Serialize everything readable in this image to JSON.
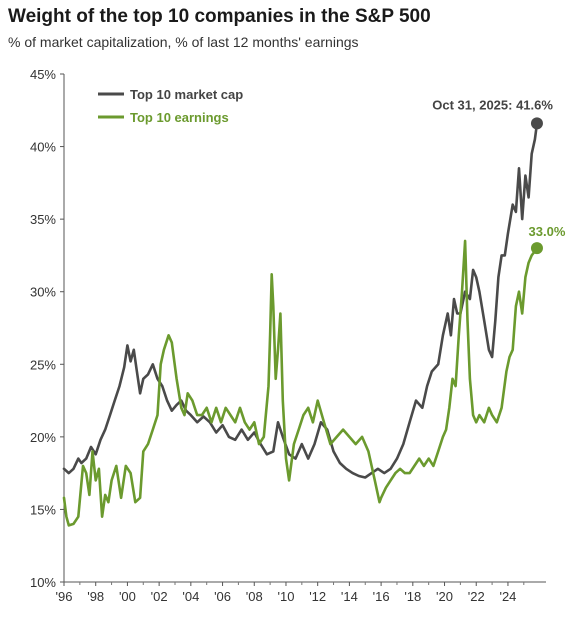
{
  "chart_data": {
    "type": "line",
    "title": "Weight of the top 10 companies in the S&P 500",
    "subtitle": "% of market capitalization, % of last 12 months' earnings",
    "xlabel": "",
    "ylabel": "",
    "x_ticks": [
      "'96",
      "'98",
      "'00",
      "'02",
      "'04",
      "'06",
      "'08",
      "'10",
      "'12",
      "'14",
      "'16",
      "'18",
      "'20",
      "'22",
      "'24"
    ],
    "y_ticks": [
      "10%",
      "15%",
      "20%",
      "25%",
      "30%",
      "35%",
      "40%",
      "45%"
    ],
    "xlim": [
      1996,
      2026.4
    ],
    "ylim": [
      10,
      45
    ],
    "legend_position": "top-left",
    "grid": false,
    "series": [
      {
        "name": "Top 10 market cap",
        "color": "#4a4a4a",
        "x": [
          1996.0,
          1996.3,
          1996.6,
          1996.9,
          1997.1,
          1997.4,
          1997.7,
          1998.0,
          1998.3,
          1998.6,
          1998.9,
          1999.2,
          1999.5,
          1999.8,
          2000.0,
          2000.2,
          2000.4,
          2000.6,
          2000.8,
          2001.0,
          2001.3,
          2001.6,
          2001.9,
          2002.2,
          2002.5,
          2002.8,
          2003.1,
          2003.4,
          2003.7,
          2004.0,
          2004.4,
          2004.8,
          2005.2,
          2005.6,
          2006.0,
          2006.4,
          2006.8,
          2007.2,
          2007.6,
          2008.0,
          2008.4,
          2008.8,
          2009.2,
          2009.5,
          2009.8,
          2010.2,
          2010.6,
          2011.0,
          2011.4,
          2011.8,
          2012.2,
          2012.6,
          2013.0,
          2013.4,
          2013.8,
          2014.2,
          2014.6,
          2015.0,
          2015.4,
          2015.8,
          2016.2,
          2016.6,
          2017.0,
          2017.4,
          2017.8,
          2018.2,
          2018.6,
          2018.9,
          2019.2,
          2019.6,
          2019.9,
          2020.2,
          2020.4,
          2020.6,
          2020.8,
          2021.0,
          2021.3,
          2021.6,
          2021.8,
          2022.0,
          2022.2,
          2022.5,
          2022.8,
          2023.0,
          2023.2,
          2023.4,
          2023.6,
          2023.8,
          2024.0,
          2024.3,
          2024.5,
          2024.7,
          2024.9,
          2025.1,
          2025.3,
          2025.5,
          2025.7,
          2025.83
        ],
        "values": [
          17.8,
          17.5,
          17.8,
          18.5,
          18.2,
          18.5,
          19.3,
          18.8,
          19.8,
          20.5,
          21.5,
          22.5,
          23.5,
          24.8,
          26.3,
          25.2,
          26.0,
          24.5,
          23.0,
          24.0,
          24.3,
          25.0,
          24.0,
          23.5,
          22.5,
          21.8,
          22.2,
          22.5,
          21.8,
          21.5,
          21.0,
          21.4,
          21.0,
          20.3,
          20.8,
          20.0,
          19.8,
          20.5,
          19.8,
          20.3,
          19.5,
          18.8,
          19.0,
          21.0,
          20.0,
          18.8,
          18.5,
          19.5,
          18.5,
          19.5,
          21.0,
          20.5,
          19.0,
          18.2,
          17.8,
          17.5,
          17.3,
          17.2,
          17.5,
          17.8,
          17.5,
          17.8,
          18.5,
          19.5,
          21.0,
          22.5,
          22.0,
          23.5,
          24.5,
          25.0,
          27.0,
          28.5,
          27.0,
          29.5,
          28.5,
          28.5,
          30.0,
          29.5,
          31.5,
          31.0,
          30.0,
          28.0,
          26.0,
          25.5,
          28.0,
          31.0,
          32.5,
          32.5,
          34.0,
          36.0,
          35.5,
          38.5,
          35.0,
          38.0,
          36.5,
          39.5,
          40.5,
          41.6
        ]
      },
      {
        "name": "Top 10 earnings",
        "color": "#6b9a2e",
        "x": [
          1996.0,
          1996.15,
          1996.3,
          1996.6,
          1996.9,
          1997.2,
          1997.4,
          1997.6,
          1997.8,
          1998.0,
          1998.2,
          1998.4,
          1998.6,
          1998.8,
          1999.0,
          1999.3,
          1999.6,
          1999.9,
          2000.2,
          2000.5,
          2000.8,
          2001.0,
          2001.3,
          2001.6,
          2001.9,
          2002.1,
          2002.3,
          2002.6,
          2002.8,
          2003.1,
          2003.4,
          2003.6,
          2003.8,
          2004.1,
          2004.4,
          2004.7,
          2005.0,
          2005.3,
          2005.6,
          2005.9,
          2006.2,
          2006.5,
          2006.8,
          2007.1,
          2007.4,
          2007.7,
          2008.0,
          2008.3,
          2008.6,
          2008.9,
          2009.0,
          2009.1,
          2009.2,
          2009.35,
          2009.5,
          2009.65,
          2009.8,
          2010.0,
          2010.2,
          2010.5,
          2010.8,
          2011.1,
          2011.4,
          2011.7,
          2012.0,
          2012.4,
          2012.8,
          2013.2,
          2013.6,
          2014.0,
          2014.4,
          2014.8,
          2015.2,
          2015.6,
          2015.9,
          2016.0,
          2016.3,
          2016.6,
          2016.9,
          2017.2,
          2017.5,
          2017.8,
          2018.1,
          2018.4,
          2018.7,
          2019.0,
          2019.3,
          2019.6,
          2019.9,
          2020.1,
          2020.3,
          2020.5,
          2020.7,
          2020.9,
          2021.1,
          2021.3,
          2021.45,
          2021.6,
          2021.8,
          2022.0,
          2022.2,
          2022.5,
          2022.8,
          2023.0,
          2023.3,
          2023.6,
          2023.9,
          2024.1,
          2024.3,
          2024.5,
          2024.7,
          2024.9,
          2025.1,
          2025.3,
          2025.5,
          2025.7,
          2025.83
        ],
        "values": [
          15.8,
          14.5,
          13.9,
          14.0,
          14.5,
          18.0,
          17.5,
          16.0,
          19.0,
          17.0,
          17.8,
          14.5,
          16.0,
          15.5,
          17.0,
          18.0,
          15.8,
          18.0,
          17.5,
          15.5,
          15.8,
          19.0,
          19.5,
          20.5,
          21.5,
          25.0,
          26.0,
          27.0,
          26.5,
          24.0,
          22.0,
          21.5,
          23.0,
          22.5,
          21.5,
          21.5,
          22.0,
          21.0,
          22.0,
          21.0,
          22.0,
          21.5,
          21.0,
          22.0,
          21.0,
          20.5,
          21.0,
          19.5,
          20.0,
          23.5,
          27.0,
          31.2,
          29.0,
          24.0,
          26.0,
          28.5,
          22.5,
          18.5,
          17.0,
          19.5,
          20.5,
          21.5,
          22.0,
          21.0,
          22.5,
          21.0,
          19.5,
          20.0,
          20.5,
          20.0,
          19.5,
          20.0,
          19.0,
          17.0,
          15.5,
          15.8,
          16.5,
          17.0,
          17.5,
          17.8,
          17.5,
          17.5,
          18.0,
          18.5,
          18.0,
          18.5,
          18.0,
          19.0,
          20.0,
          20.5,
          22.0,
          24.0,
          23.5,
          27.0,
          30.0,
          33.5,
          28.0,
          24.0,
          21.5,
          21.0,
          21.5,
          21.0,
          22.0,
          21.5,
          21.0,
          22.0,
          24.5,
          25.5,
          26.0,
          29.0,
          30.0,
          28.5,
          31.0,
          32.0,
          32.5,
          32.8,
          33.0
        ]
      }
    ],
    "annotations": [
      {
        "text": "Oct 31, 2025: 41.6%",
        "x": 2025.83,
        "y": 41.6,
        "series": "Top 10 market cap"
      },
      {
        "text": "33.0%",
        "x": 2025.83,
        "y": 33.0,
        "series": "Top 10 earnings"
      }
    ]
  }
}
